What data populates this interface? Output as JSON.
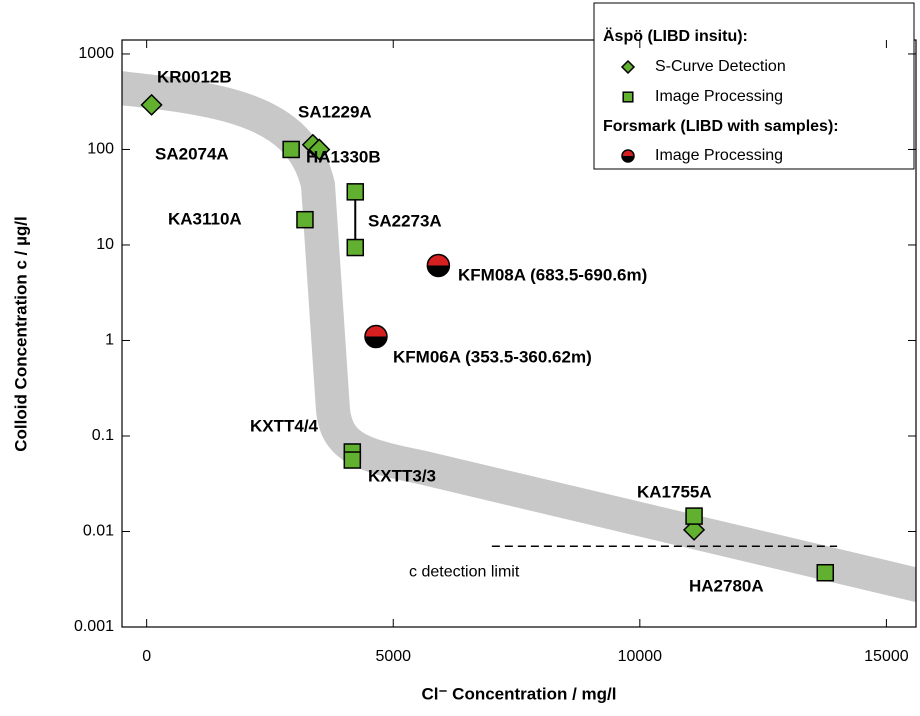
{
  "chart_data": {
    "type": "scatter",
    "x_label": "Cl⁻ Concentration / mg/l",
    "y_label": "Colloid Concentration c / µg/l",
    "xlim": [
      -500,
      15600
    ],
    "xticks": [
      0,
      5000,
      10000,
      15000
    ],
    "ylim": [
      0.001,
      1400
    ],
    "yticks": [
      1000,
      100,
      10,
      1,
      0.1,
      0.01,
      0.001
    ],
    "y_log": true,
    "legend_groups": [
      "Äspö (LIBD insitu):",
      "Forsmark (LIBD with samples):"
    ],
    "series": [
      {
        "name": "S-Curve Detection",
        "group": 0,
        "marker": "diamond",
        "color": "#62b030",
        "x": [
          100,
          3370,
          3500,
          11100
        ],
        "values": [
          293,
          112,
          100,
          0.0104
        ]
      },
      {
        "name": "Image Processing",
        "group": 0,
        "marker": "square",
        "color": "#62b030",
        "x": [
          2930,
          3210,
          4230,
          4230,
          4170,
          4170,
          11100,
          13760
        ],
        "values": [
          100,
          18.4,
          36,
          9.4,
          0.068,
          0.056,
          0.0145,
          0.0037
        ]
      },
      {
        "name": "Image Processing",
        "group": 1,
        "marker": "half-circle",
        "color": "#d42020",
        "x": [
          5915,
          4650
        ],
        "values": [
          6.1,
          1.1
        ]
      }
    ],
    "annotations": [
      "KR0012B",
      "SA1229A",
      "SA2074A",
      "HA1330B",
      "KA3110A",
      "SA2273A",
      "KFM08A (683.5-690.6m)",
      "KFM06A (353.5-360.62m)",
      "KXTT4/4",
      "KXTT3/3",
      "KA1755A",
      "HA2780A"
    ],
    "detection_limit": {
      "label": "c detection limit",
      "value": 0.007,
      "x_range": [
        7000,
        14000
      ]
    }
  }
}
